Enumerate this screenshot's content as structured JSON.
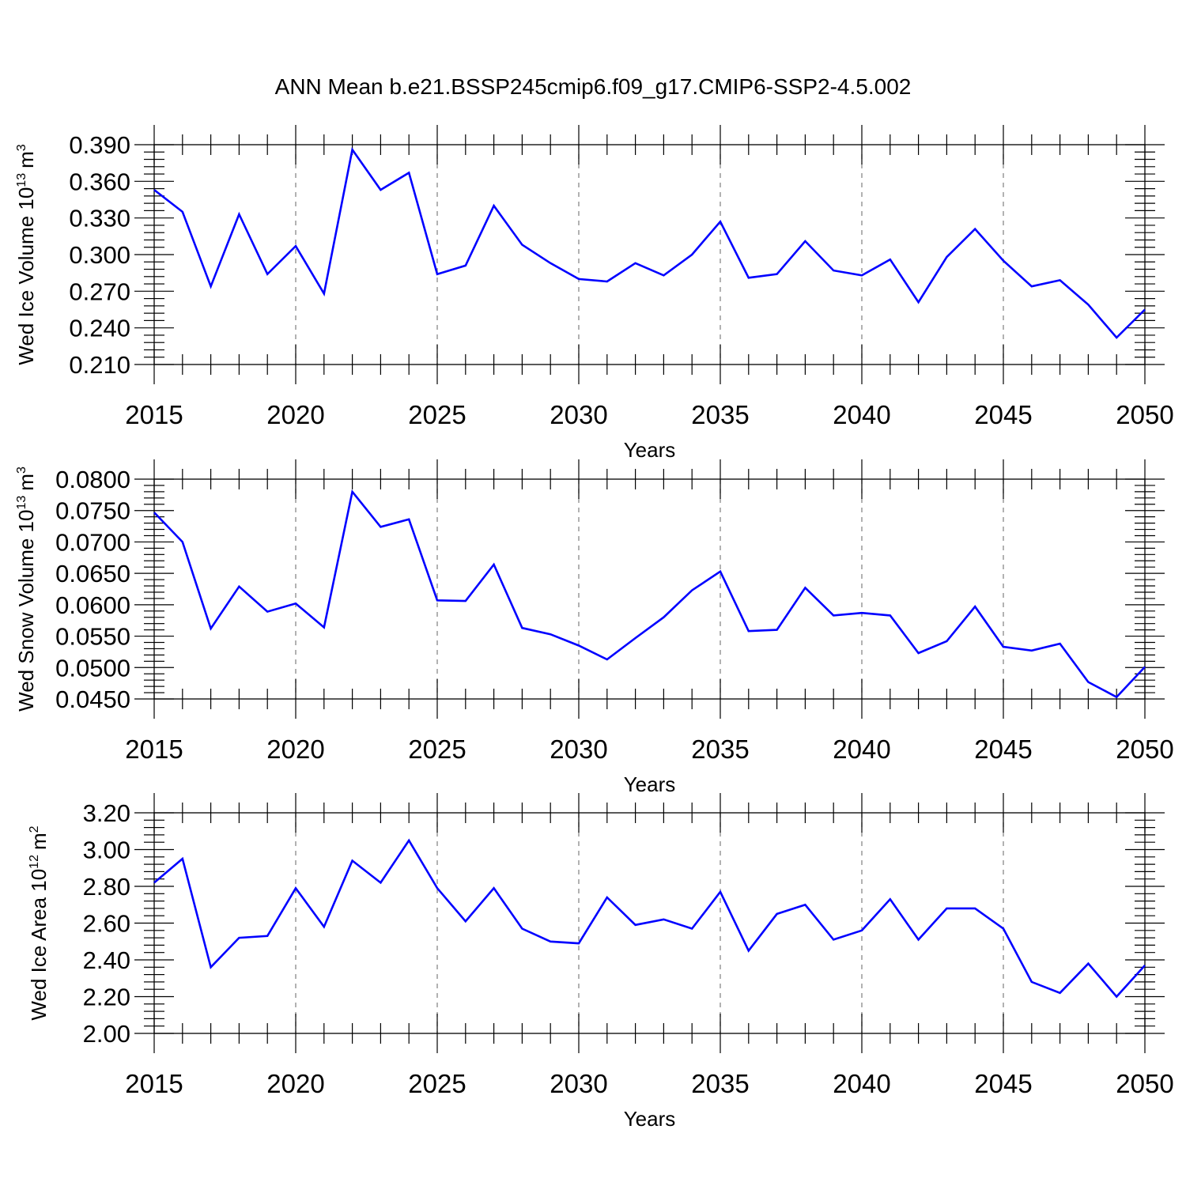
{
  "title": "ANN Mean b.e21.BSSP245cmip6.f09_g17.CMIP6-SSP2-4.5.002",
  "line_color": "#0000ff",
  "chart_data": [
    {
      "type": "line",
      "ylabel": {
        "text": "Wed Ice Volume 10",
        "exp": "13",
        "unit": "m",
        "unit_exp": "3"
      },
      "xlabel": "Years",
      "xlim": [
        2015,
        2050
      ],
      "ylim": [
        0.21,
        0.39
      ],
      "yticks": [
        "0.210",
        "0.240",
        "0.270",
        "0.300",
        "0.330",
        "0.360",
        "0.390"
      ],
      "xticks": [
        "2015",
        "2020",
        "2025",
        "2030",
        "2035",
        "2040",
        "2045",
        "2050"
      ],
      "grid_x": true,
      "x": [
        2015,
        2016,
        2017,
        2018,
        2019,
        2020,
        2021,
        2022,
        2023,
        2024,
        2025,
        2026,
        2027,
        2028,
        2029,
        2030,
        2031,
        2032,
        2033,
        2034,
        2035,
        2036,
        2037,
        2038,
        2039,
        2040,
        2041,
        2042,
        2043,
        2044,
        2045,
        2046,
        2047,
        2048,
        2049,
        2050
      ],
      "values": [
        0.353,
        0.335,
        0.274,
        0.333,
        0.284,
        0.307,
        0.268,
        0.386,
        0.353,
        0.367,
        0.284,
        0.291,
        0.34,
        0.308,
        0.293,
        0.28,
        0.278,
        0.293,
        0.283,
        0.3,
        0.327,
        0.281,
        0.284,
        0.311,
        0.287,
        0.283,
        0.296,
        0.261,
        0.298,
        0.321,
        0.295,
        0.274,
        0.279,
        0.259,
        0.232,
        0.255
      ]
    },
    {
      "type": "line",
      "ylabel": {
        "text": "Wed Snow Volume 10",
        "exp": "13",
        "unit": "m",
        "unit_exp": "3"
      },
      "xlabel": "Years",
      "xlim": [
        2015,
        2050
      ],
      "ylim": [
        0.045,
        0.08
      ],
      "yticks": [
        "0.0450",
        "0.0500",
        "0.0550",
        "0.0600",
        "0.0650",
        "0.0700",
        "0.0750",
        "0.0800"
      ],
      "xticks": [
        "2015",
        "2020",
        "2025",
        "2030",
        "2035",
        "2040",
        "2045",
        "2050"
      ],
      "grid_x": true,
      "x": [
        2015,
        2016,
        2017,
        2018,
        2019,
        2020,
        2021,
        2022,
        2023,
        2024,
        2025,
        2026,
        2027,
        2028,
        2029,
        2030,
        2031,
        2032,
        2033,
        2034,
        2035,
        2036,
        2037,
        2038,
        2039,
        2040,
        2041,
        2042,
        2043,
        2044,
        2045,
        2046,
        2047,
        2048,
        2049,
        2050
      ],
      "values": [
        0.0747,
        0.07,
        0.0562,
        0.0629,
        0.0589,
        0.0602,
        0.0564,
        0.078,
        0.0724,
        0.0736,
        0.0607,
        0.0606,
        0.0664,
        0.0563,
        0.0553,
        0.0535,
        0.0513,
        0.0547,
        0.058,
        0.0623,
        0.0653,
        0.0558,
        0.056,
        0.0627,
        0.0583,
        0.0587,
        0.0583,
        0.0523,
        0.0542,
        0.0597,
        0.0533,
        0.0527,
        0.0538,
        0.0477,
        0.0453,
        0.0501
      ]
    },
    {
      "type": "line",
      "ylabel": {
        "text": "Wed Ice Area 10",
        "exp": "12",
        "unit": "m",
        "unit_exp": "2"
      },
      "xlabel": "Years",
      "xlim": [
        2015,
        2050
      ],
      "ylim": [
        2.0,
        3.2
      ],
      "yticks": [
        "2.00",
        "2.20",
        "2.40",
        "2.60",
        "2.80",
        "3.00",
        "3.20"
      ],
      "xticks": [
        "2015",
        "2020",
        "2025",
        "2030",
        "2035",
        "2040",
        "2045",
        "2050"
      ],
      "grid_x": true,
      "x": [
        2015,
        2016,
        2017,
        2018,
        2019,
        2020,
        2021,
        2022,
        2023,
        2024,
        2025,
        2026,
        2027,
        2028,
        2029,
        2030,
        2031,
        2032,
        2033,
        2034,
        2035,
        2036,
        2037,
        2038,
        2039,
        2040,
        2041,
        2042,
        2043,
        2044,
        2045,
        2046,
        2047,
        2048,
        2049,
        2050
      ],
      "values": [
        2.82,
        2.95,
        2.36,
        2.52,
        2.53,
        2.79,
        2.58,
        2.94,
        2.82,
        3.05,
        2.79,
        2.61,
        2.79,
        2.57,
        2.5,
        2.49,
        2.74,
        2.59,
        2.62,
        2.57,
        2.77,
        2.45,
        2.65,
        2.7,
        2.51,
        2.56,
        2.73,
        2.51,
        2.68,
        2.68,
        2.57,
        2.28,
        2.22,
        2.38,
        2.2,
        2.37
      ]
    }
  ]
}
